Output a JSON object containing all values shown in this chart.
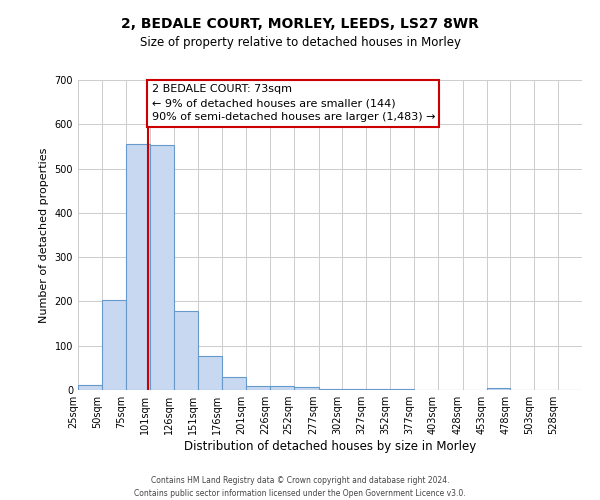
{
  "title": "2, BEDALE COURT, MORLEY, LEEDS, LS27 8WR",
  "subtitle": "Size of property relative to detached houses in Morley",
  "xlabel": "Distribution of detached houses by size in Morley",
  "ylabel": "Number of detached properties",
  "bar_values": [
    12,
    204,
    556,
    554,
    178,
    77,
    30,
    10,
    8,
    7,
    3,
    2,
    2,
    2,
    0,
    0,
    0,
    5,
    0,
    0,
    0
  ],
  "bin_labels": [
    "25sqm",
    "50sqm",
    "75sqm",
    "101sqm",
    "126sqm",
    "151sqm",
    "176sqm",
    "201sqm",
    "226sqm",
    "252sqm",
    "277sqm",
    "302sqm",
    "327sqm",
    "352sqm",
    "377sqm",
    "403sqm",
    "428sqm",
    "453sqm",
    "478sqm",
    "503sqm",
    "528sqm"
  ],
  "bin_edges": [
    0,
    25,
    50,
    75,
    101,
    126,
    151,
    176,
    201,
    226,
    252,
    277,
    302,
    327,
    352,
    377,
    403,
    428,
    453,
    478,
    503,
    528
  ],
  "bar_color": "#c8d8f0",
  "bar_edge_color": "#6699cc",
  "ylim": [
    0,
    700
  ],
  "yticks": [
    0,
    100,
    200,
    300,
    400,
    500,
    600,
    700
  ],
  "property_size": 73,
  "property_line_color": "#cc0000",
  "annotation_line1": "2 BEDALE COURT: 73sqm",
  "annotation_line2": "← 9% of detached houses are smaller (144)",
  "annotation_line3": "90% of semi-detached houses are larger (1,483) →",
  "annotation_box_color": "#ffffff",
  "annotation_box_edge_color": "#cc0000",
  "footer_line1": "Contains HM Land Registry data © Crown copyright and database right 2024.",
  "footer_line2": "Contains public sector information licensed under the Open Government Licence v3.0.",
  "background_color": "#ffffff",
  "grid_color": "#cccccc",
  "title_fontsize": 10,
  "subtitle_fontsize": 8.5,
  "ylabel_fontsize": 8,
  "xlabel_fontsize": 8.5,
  "tick_fontsize": 7,
  "footer_fontsize": 5.5,
  "annot_fontsize": 8
}
